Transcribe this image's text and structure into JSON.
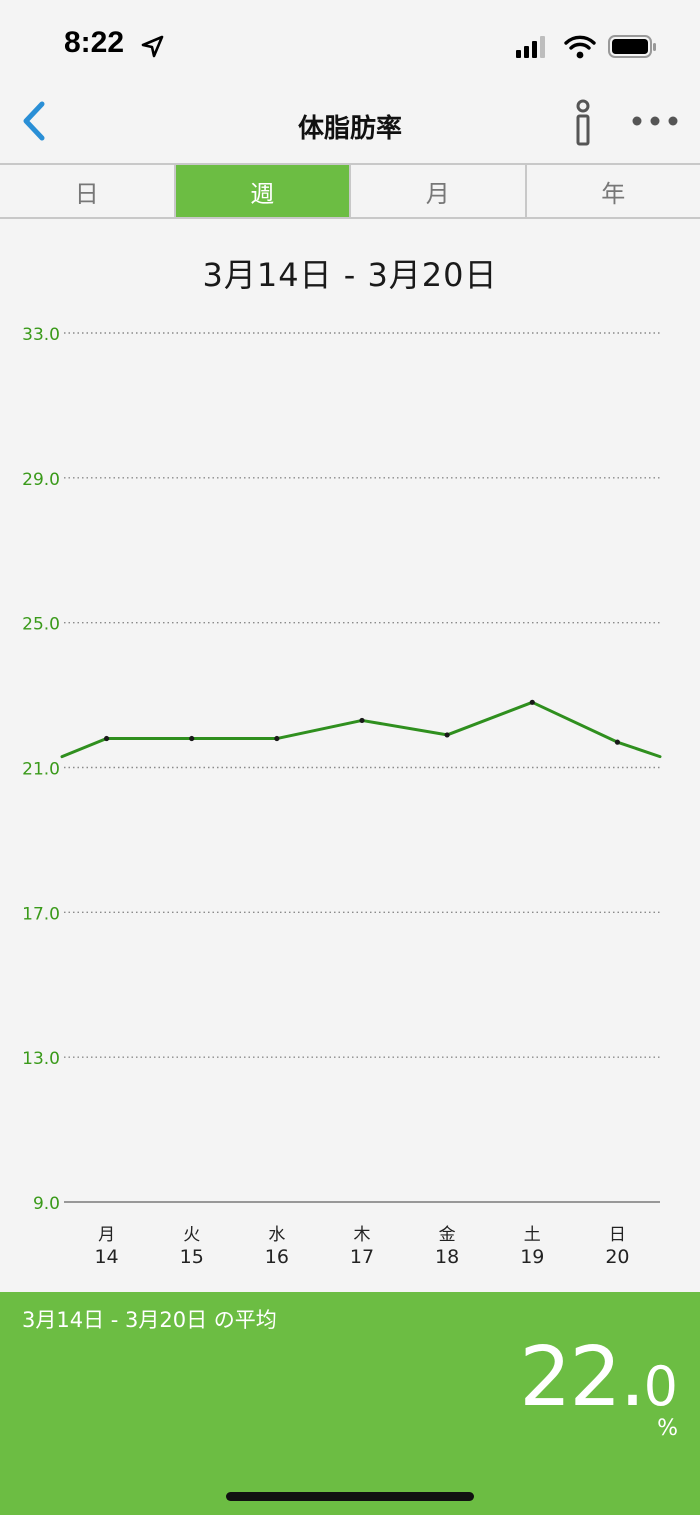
{
  "status_bar": {
    "time": "8:22"
  },
  "nav": {
    "title": "体脂肪率"
  },
  "tabs": [
    {
      "label": "日",
      "active": false
    },
    {
      "label": "週",
      "active": true
    },
    {
      "label": "月",
      "active": false
    },
    {
      "label": "年",
      "active": false
    }
  ],
  "date_range": "3月14日 - 3月20日",
  "chart_data": {
    "type": "line",
    "x": [
      "月 14",
      "火 15",
      "水 16",
      "木 17",
      "金 18",
      "土 19",
      "日 20"
    ],
    "weekdays": [
      "月",
      "火",
      "水",
      "木",
      "金",
      "土",
      "日"
    ],
    "days": [
      "14",
      "15",
      "16",
      "17",
      "18",
      "19",
      "20"
    ],
    "series": [
      {
        "values": [
          21.8,
          21.8,
          21.8,
          22.3,
          21.9,
          22.8,
          21.7
        ]
      }
    ],
    "edge_values": {
      "start": 21.3,
      "end": 21.3
    },
    "ylim": [
      9.0,
      33.0
    ],
    "yticks": [
      "9.0",
      "13.0",
      "17.0",
      "21.0",
      "25.0",
      "29.0",
      "33.0"
    ],
    "grid": true,
    "line_color": "#2f8f1e",
    "tick_color": "#3a9a1a"
  },
  "footer": {
    "caption": "3月14日 - 3月20日 の平均",
    "value_int": "22.",
    "value_dec": "0",
    "unit": "%"
  },
  "colors": {
    "accent": "#6cbd43",
    "back_arrow": "#2a8fd6"
  },
  "icons": {
    "back": "chevron-left-icon",
    "info": "info-icon",
    "more": "more-icon",
    "location": "location-arrow-icon"
  }
}
